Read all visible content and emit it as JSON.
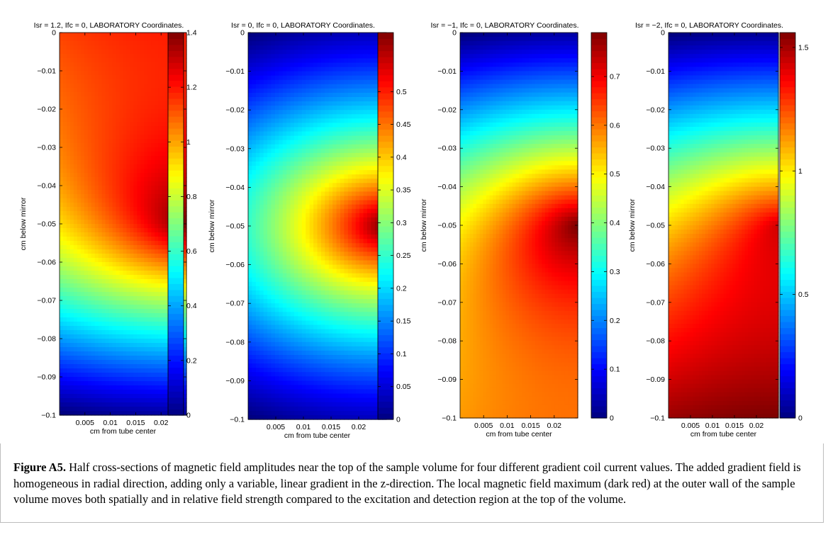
{
  "figure": {
    "caption_label": "Figure A5.",
    "caption_text": " Half cross-sections of magnetic field amplitudes near the top of the sample volume for four different gradient coil current values. The added gradient field is homogeneous in radial direction, adding only a variable, linear gradient in the z-direction. The local magnetic field maximum (dark red) at the outer wall of the sample volume moves both spatially and in relative field strength compared to the excitation and detection region at the top of the volume."
  },
  "chart_data": [
    {
      "type": "heatmap",
      "title": "Isr = 1.2, Ifc = 0, LABORATORY Coordinates.",
      "xlabel": "cm from tube center",
      "ylabel": "cm below mirror",
      "xlim": [
        0,
        0.025
      ],
      "ylim": [
        -0.1,
        0
      ],
      "xticks": [
        "0.005",
        "0.01",
        "0.015",
        "0.02"
      ],
      "yticks": [
        "0",
        "−0.01",
        "−0.02",
        "−0.03",
        "−0.04",
        "−0.05",
        "−0.06",
        "−0.07",
        "−0.08",
        "−0.09",
        "−0.1"
      ],
      "colorbar": {
        "min": 0,
        "max": 1.4,
        "ticks": [
          "0",
          "0.2",
          "0.4",
          "0.6",
          "0.8",
          "1",
          "1.2",
          "1.4"
        ]
      },
      "colormap": "jet",
      "gradient_factor": 0.6
    },
    {
      "type": "heatmap",
      "title": "Isr = 0, Ifc = 0, LABORATORY Coordinates.",
      "xlabel": "cm from tube center",
      "ylabel": "cm below mirror",
      "xlim": [
        0,
        0.025
      ],
      "ylim": [
        -0.1,
        0
      ],
      "xticks": [
        "0.005",
        "0.01",
        "0.015",
        "0.02"
      ],
      "yticks": [
        "0",
        "−0.01",
        "−0.02",
        "−0.03",
        "−0.04",
        "−0.05",
        "−0.06",
        "−0.07",
        "−0.08",
        "−0.09",
        "−0.1"
      ],
      "colorbar": {
        "min": 0,
        "max": 0.59,
        "ticks": [
          "0",
          "0.05",
          "0.1",
          "0.15",
          "0.2",
          "0.25",
          "0.3",
          "0.35",
          "0.4",
          "0.45",
          "0.5"
        ]
      },
      "colormap": "jet",
      "gradient_factor": 0
    },
    {
      "type": "heatmap",
      "title": "Isr = −1, Ifc = 0, LABORATORY Coordinates.",
      "xlabel": "cm from tube center",
      "ylabel": "cm below mirror",
      "xlim": [
        0,
        0.025
      ],
      "ylim": [
        -0.1,
        0
      ],
      "xticks": [
        "0.005",
        "0.01",
        "0.015",
        "0.02"
      ],
      "yticks": [
        "0",
        "−0.01",
        "−0.02",
        "−0.03",
        "−0.04",
        "−0.05",
        "−0.06",
        "−0.07",
        "−0.08",
        "−0.09",
        "−0.1"
      ],
      "colorbar": {
        "min": 0,
        "max": 0.79,
        "ticks": [
          "0",
          "0.1",
          "0.2",
          "0.3",
          "0.4",
          "0.5",
          "0.6",
          "0.7"
        ]
      },
      "colormap": "jet",
      "gradient_factor": -0.5
    },
    {
      "type": "heatmap",
      "title": "Isr = −2, Ifc = 0, LABORATORY Coordinates.",
      "xlabel": "cm from tube center",
      "ylabel": "cm below mirror",
      "xlim": [
        0,
        0.025
      ],
      "ylim": [
        -0.1,
        0
      ],
      "xticks": [
        "0.005",
        "0.01",
        "0.015",
        "0.02"
      ],
      "yticks": [
        "0",
        "−0.01",
        "−0.02",
        "−0.03",
        "−0.04",
        "−0.05",
        "−0.06",
        "−0.07",
        "−0.08",
        "−0.09",
        "−0.1"
      ],
      "colorbar": {
        "min": 0,
        "max": 1.56,
        "ticks": [
          "0",
          "0.5",
          "1",
          "1.5"
        ]
      },
      "colormap": "jet",
      "gradient_factor": -1.0
    }
  ]
}
